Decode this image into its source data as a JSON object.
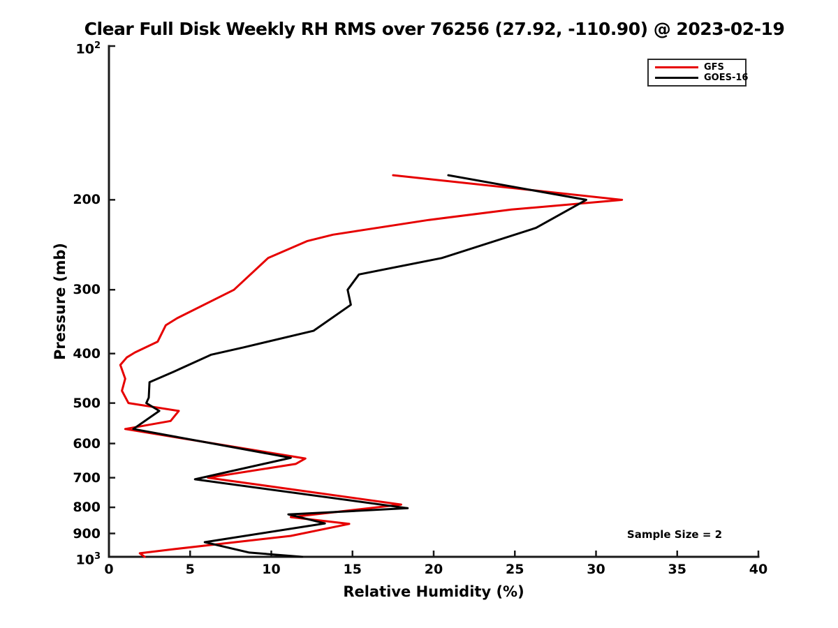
{
  "chart_data": {
    "type": "line",
    "title": "Clear Full Disk Weekly RH RMS over 76256 (27.92, -110.90) @ 2023-02-19",
    "xlabel": "Relative Humidity (%)",
    "ylabel": "Pressure (mb)",
    "grid": false,
    "axis_color": "#1a1a1a",
    "x_axis": {
      "min": 0,
      "max": 40,
      "ticks": [
        0,
        5,
        10,
        15,
        20,
        25,
        30,
        35,
        40
      ]
    },
    "y_axis": {
      "scale": "log",
      "min": 100,
      "max": 1000,
      "direction": "pressure increases downward",
      "ticks": [
        {
          "base": "10",
          "exp": "2",
          "value": 100
        },
        {
          "label": "200",
          "value": 200
        },
        {
          "label": "300",
          "value": 300
        },
        {
          "label": "400",
          "value": 400
        },
        {
          "label": "500",
          "value": 500
        },
        {
          "label": "600",
          "value": 600
        },
        {
          "label": "700",
          "value": 700
        },
        {
          "label": "800",
          "value": 800
        },
        {
          "label": "900",
          "value": 900
        },
        {
          "base": "10",
          "exp": "3",
          "value": 1000
        }
      ]
    },
    "legend": {
      "position": "top-right",
      "entries": [
        {
          "label": "GFS",
          "color": "#e60000"
        },
        {
          "label": "GOES-16",
          "color": "#000000"
        }
      ]
    },
    "annotation": {
      "text": "Sample Size = 2"
    },
    "series": [
      {
        "name": "GFS",
        "color": "#e60000",
        "line_width": 3,
        "points_rh_pressure": [
          [
            17.5,
            179
          ],
          [
            31.6,
            200
          ],
          [
            24.8,
            209
          ],
          [
            19.7,
            219
          ],
          [
            13.8,
            234
          ],
          [
            12.2,
            241
          ],
          [
            9.8,
            260
          ],
          [
            7.7,
            300
          ],
          [
            4.2,
            341
          ],
          [
            3.5,
            352
          ],
          [
            3.0,
            379
          ],
          [
            1.6,
            398
          ],
          [
            1.1,
            407
          ],
          [
            0.7,
            421
          ],
          [
            1.0,
            448
          ],
          [
            0.8,
            473
          ],
          [
            1.2,
            500
          ],
          [
            4.3,
            518
          ],
          [
            3.8,
            542
          ],
          [
            1.0,
            562
          ],
          [
            12.1,
            642
          ],
          [
            11.5,
            658
          ],
          [
            6.1,
            700
          ],
          [
            18.0,
            790
          ],
          [
            11.2,
            836
          ],
          [
            14.8,
            862
          ],
          [
            11.2,
            910
          ],
          [
            4.0,
            966
          ],
          [
            1.9,
            984
          ],
          [
            2.2,
            1000
          ]
        ]
      },
      {
        "name": "GOES-16",
        "color": "#000000",
        "line_width": 3,
        "points_rh_pressure": [
          [
            20.9,
            179
          ],
          [
            29.4,
            200
          ],
          [
            26.3,
            227
          ],
          [
            20.5,
            260
          ],
          [
            15.4,
            280
          ],
          [
            14.7,
            300
          ],
          [
            14.9,
            321
          ],
          [
            12.6,
            361
          ],
          [
            8.3,
            389
          ],
          [
            6.3,
            402
          ],
          [
            4.0,
            434
          ],
          [
            2.5,
            455
          ],
          [
            2.45,
            488
          ],
          [
            2.3,
            500
          ],
          [
            3.1,
            518
          ],
          [
            1.5,
            562
          ],
          [
            11.2,
            640
          ],
          [
            5.3,
            705
          ],
          [
            18.4,
            803
          ],
          [
            11.05,
            826
          ],
          [
            13.3,
            860
          ],
          [
            5.9,
            936
          ],
          [
            8.65,
            981
          ],
          [
            11.9,
            1000
          ]
        ]
      }
    ]
  }
}
